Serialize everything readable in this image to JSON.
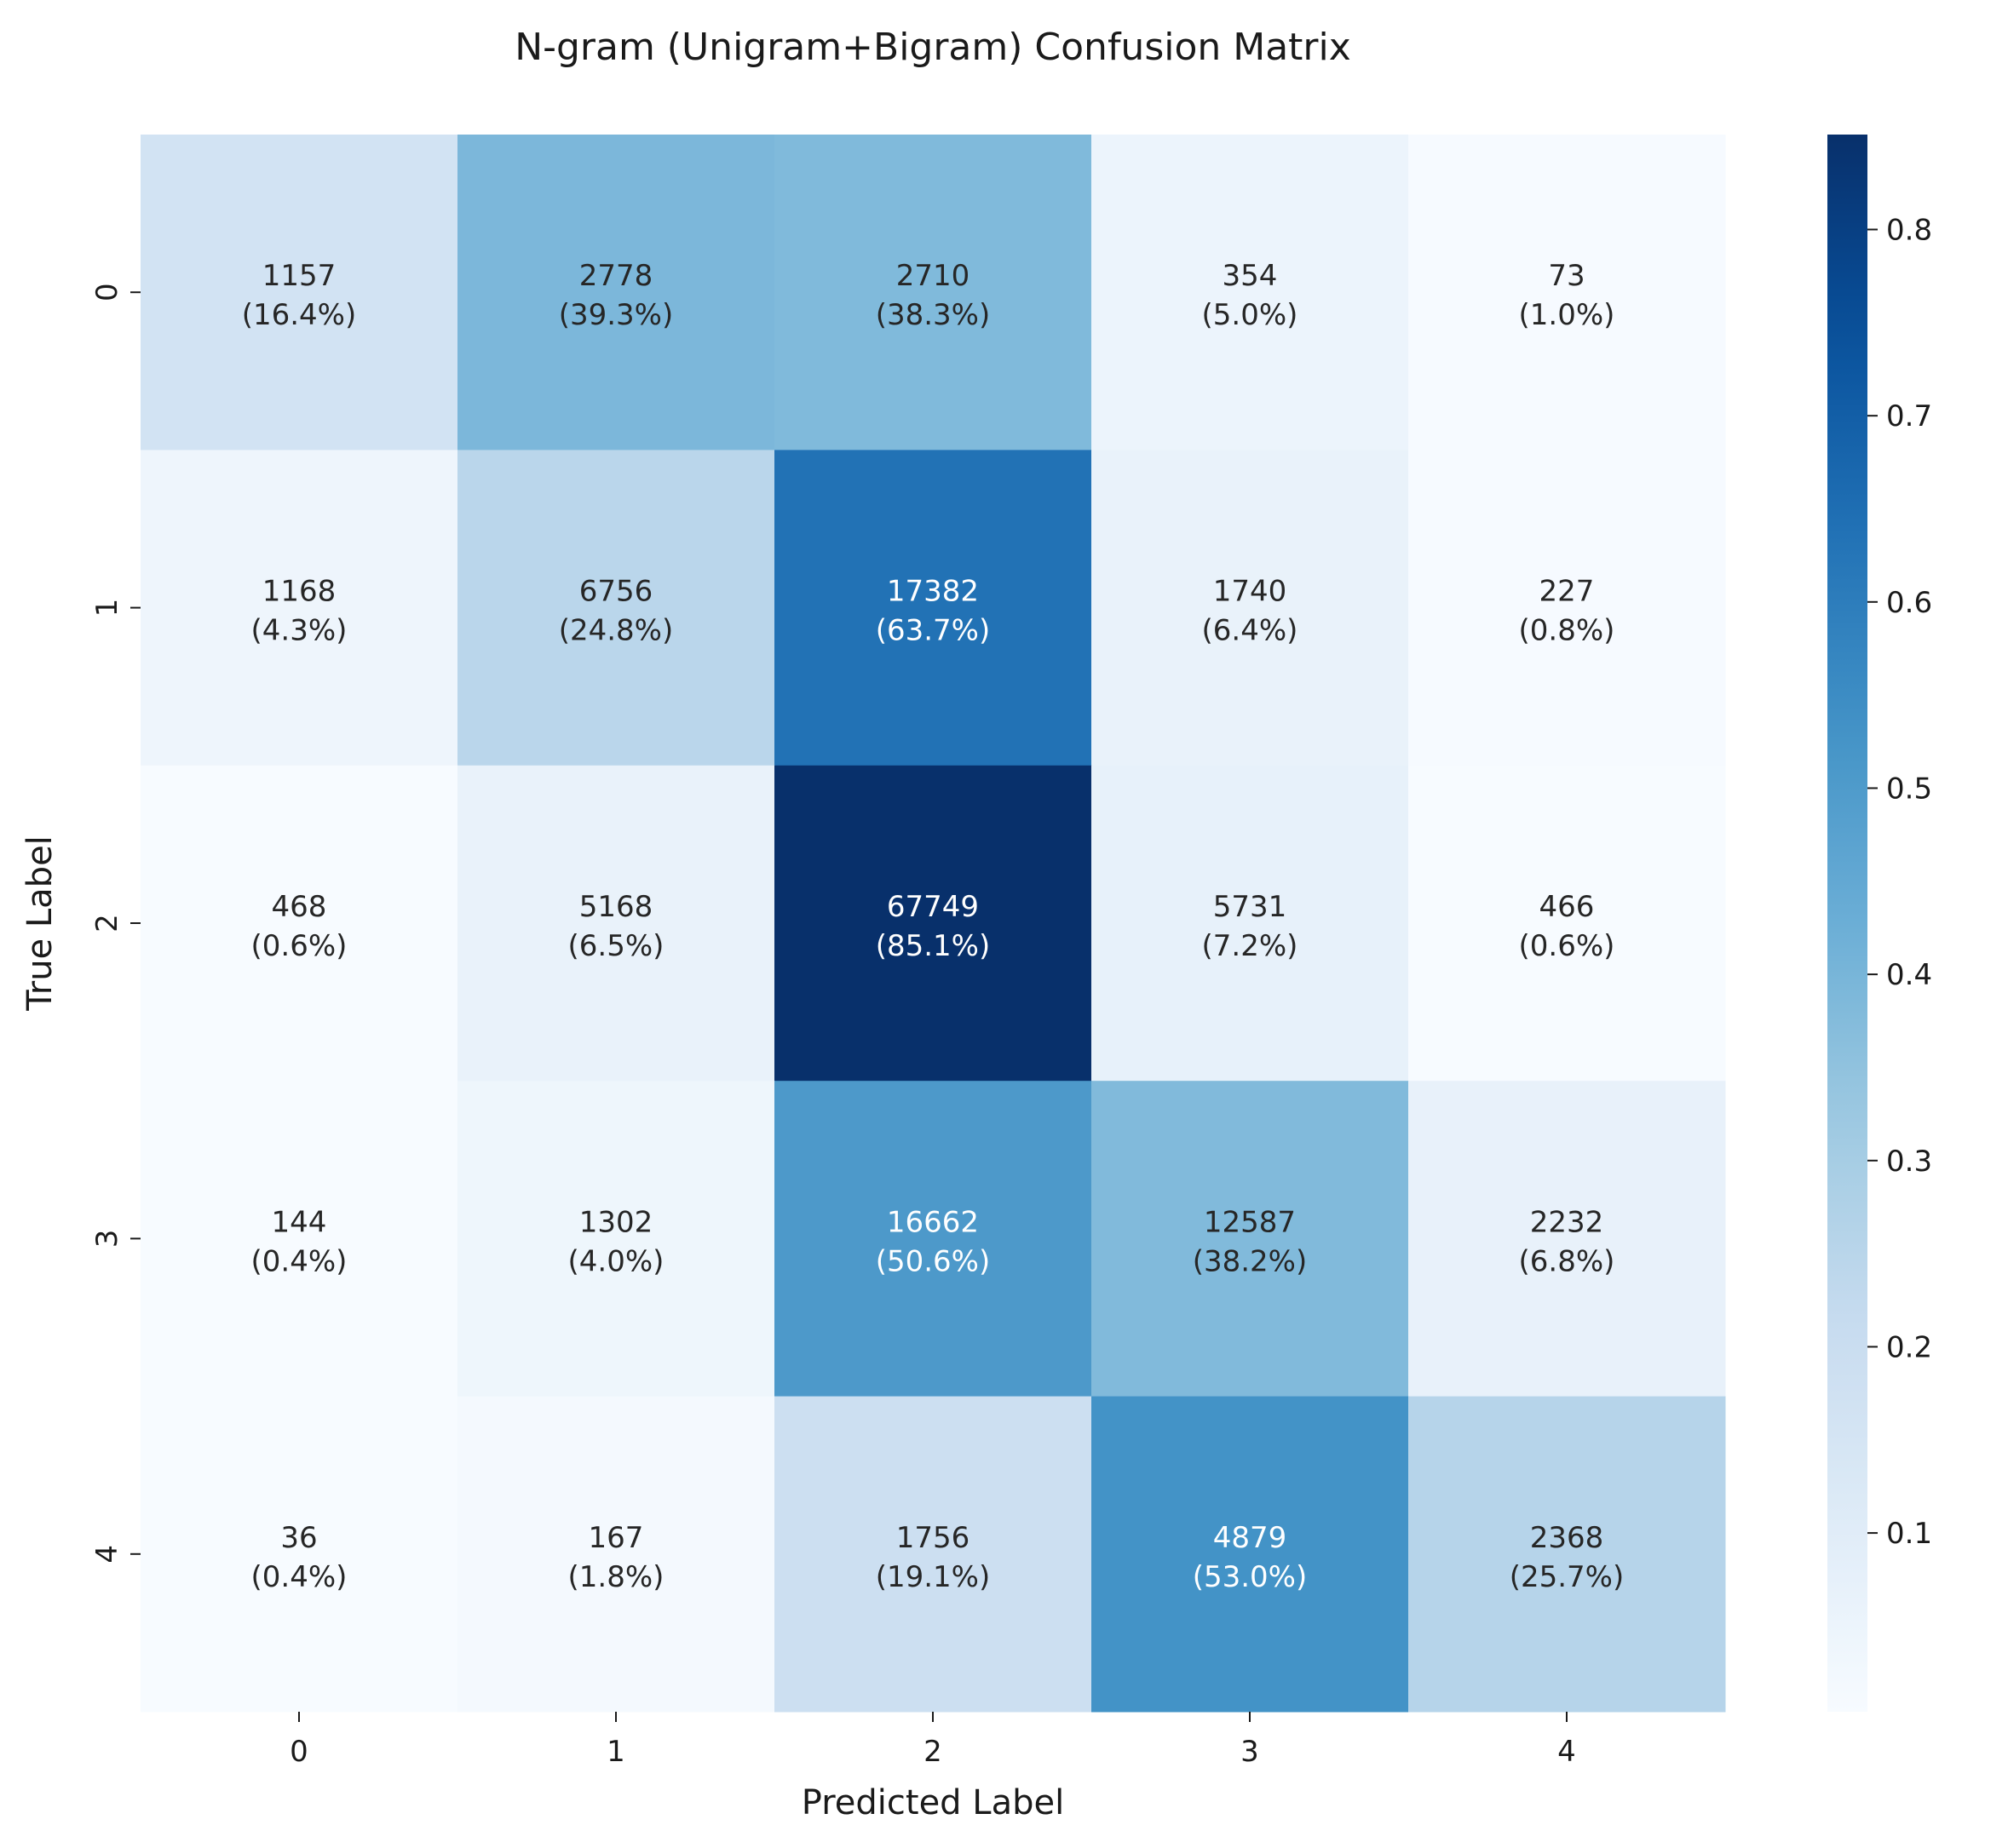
{
  "chart_data": {
    "type": "heatmap",
    "title": "N-gram (Unigram+Bigram) Confusion Matrix",
    "xlabel": "Predicted Label",
    "ylabel": "True Label",
    "x_categories": [
      "0",
      "1",
      "2",
      "3",
      "4"
    ],
    "y_categories": [
      "0",
      "1",
      "2",
      "3",
      "4"
    ],
    "counts": [
      [
        1157,
        2778,
        2710,
        354,
        73
      ],
      [
        1168,
        6756,
        17382,
        1740,
        227
      ],
      [
        468,
        5168,
        67749,
        5731,
        466
      ],
      [
        144,
        1302,
        16662,
        12587,
        2232
      ],
      [
        36,
        167,
        1756,
        4879,
        2368
      ]
    ],
    "percent_labels": [
      [
        "(16.4%)",
        "(39.3%)",
        "(38.3%)",
        "(5.0%)",
        "(1.0%)"
      ],
      [
        "(4.3%)",
        "(24.8%)",
        "(63.7%)",
        "(6.4%)",
        "(0.8%)"
      ],
      [
        "(0.6%)",
        "(6.5%)",
        "(85.1%)",
        "(7.2%)",
        "(0.6%)"
      ],
      [
        "(0.4%)",
        "(4.0%)",
        "(50.6%)",
        "(38.2%)",
        "(6.8%)"
      ],
      [
        "(0.4%)",
        "(1.8%)",
        "(19.1%)",
        "(53.0%)",
        "(25.7%)"
      ]
    ],
    "normalized": [
      [
        0.164,
        0.393,
        0.383,
        0.05,
        0.01
      ],
      [
        0.043,
        0.248,
        0.637,
        0.064,
        0.008
      ],
      [
        0.006,
        0.065,
        0.851,
        0.072,
        0.006
      ],
      [
        0.004,
        0.04,
        0.506,
        0.382,
        0.068
      ],
      [
        0.004,
        0.018,
        0.191,
        0.53,
        0.257
      ]
    ],
    "colorscale": "Blues",
    "colorbar": {
      "range": [
        0.004,
        0.851
      ],
      "ticks": [
        0.1,
        0.2,
        0.3,
        0.4,
        0.5,
        0.6,
        0.7,
        0.8
      ],
      "tick_labels": [
        "0.1",
        "0.2",
        "0.3",
        "0.4",
        "0.5",
        "0.6",
        "0.7",
        "0.8"
      ]
    },
    "grid": false,
    "legend": "none"
  }
}
